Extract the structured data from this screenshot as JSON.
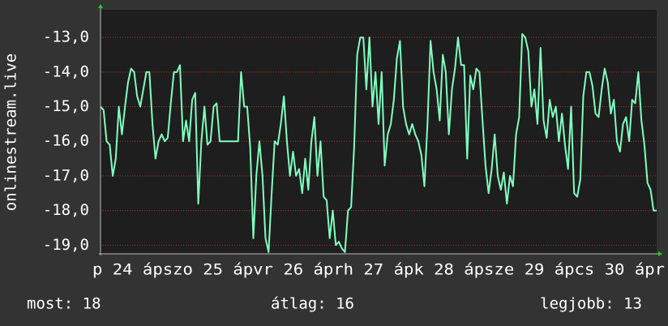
{
  "chart_data": {
    "type": "line",
    "y_label": "onlinestream.live",
    "x_axis_text": "p 24 ápszo 25 ápvr 26 áprh 27 ápk 28 ápsze 29 ápcs 30 ápr",
    "color": "#80ffc0",
    "grid": true,
    "ylim": [
      -19.25,
      -12.2
    ],
    "yticks": [
      {
        "value": -13,
        "label": "-13,0"
      },
      {
        "value": -14,
        "label": "-14,0"
      },
      {
        "value": -15,
        "label": "-15,0"
      },
      {
        "value": -16,
        "label": "-16,0"
      },
      {
        "value": -17,
        "label": "-17,0"
      },
      {
        "value": -18,
        "label": "-18,0"
      },
      {
        "value": -19,
        "label": "-19,0"
      }
    ],
    "values": [
      -15,
      -15.1,
      -16,
      -16.1,
      -17,
      -16.5,
      -15,
      -15.8,
      -15,
      -14.3,
      -13.9,
      -14,
      -14.7,
      -15,
      -14.5,
      -14,
      -14,
      -15.5,
      -16.5,
      -16,
      -15.8,
      -16,
      -15.9,
      -14.9,
      -14,
      -14,
      -13.8,
      -16,
      -15.4,
      -16,
      -14.8,
      -14.6,
      -17.8,
      -16,
      -15,
      -16.1,
      -16,
      -15,
      -14.9,
      -16,
      -16,
      -16,
      -16,
      -16,
      -16,
      -16,
      -14,
      -15,
      -15,
      -16.2,
      -18.8,
      -17,
      -16,
      -17,
      -18.8,
      -19.2,
      -17.5,
      -16,
      -16.1,
      -15.5,
      -14.7,
      -16,
      -17,
      -16.3,
      -17,
      -16.8,
      -17.5,
      -16.5,
      -17.4,
      -16,
      -15.3,
      -17,
      -16,
      -17.6,
      -17.7,
      -18.8,
      -18,
      -19,
      -18.9,
      -19.1,
      -19.2,
      -18,
      -17.9,
      -16.2,
      -13.5,
      -13,
      -13,
      -14.5,
      -13,
      -15,
      -14,
      -15.5,
      -14,
      -16.7,
      -15.8,
      -15.5,
      -14.8,
      -13.6,
      -13.1,
      -15,
      -15.5,
      -15.8,
      -15.5,
      -15.8,
      -16,
      -16.4,
      -17.3,
      -15.5,
      -13.1,
      -14,
      -14.5,
      -15.4,
      -13.5,
      -14,
      -15.8,
      -14.5,
      -13.9,
      -13,
      -13.8,
      -13.8,
      -16.5,
      -14.1,
      -14.5,
      -13.9,
      -14,
      -15.4,
      -16.7,
      -17.5,
      -16.8,
      -15.8,
      -17,
      -17.4,
      -16.9,
      -17.8,
      -17,
      -17.3,
      -15.8,
      -15.3,
      -12.9,
      -13,
      -13.4,
      -15,
      -14.5,
      -15.5,
      -13.3,
      -15.4,
      -15.9,
      -14.8,
      -15.3,
      -15,
      -16,
      -15.2,
      -16.1,
      -16.8,
      -15,
      -17.5,
      -17.6,
      -17.1,
      -14.7,
      -14,
      -14,
      -14.4,
      -15.2,
      -15.3,
      -14.5,
      -13.9,
      -14.3,
      -15.2,
      -14.8,
      -16,
      -16.3,
      -15.5,
      -15.3,
      -16,
      -14.8,
      -14.9,
      -14,
      -15.4,
      -16.1,
      -17.2,
      -17.4,
      -18,
      -18
    ],
    "footer": [
      "most: 18",
      "átlag: 16",
      "legjobb: 13"
    ]
  }
}
